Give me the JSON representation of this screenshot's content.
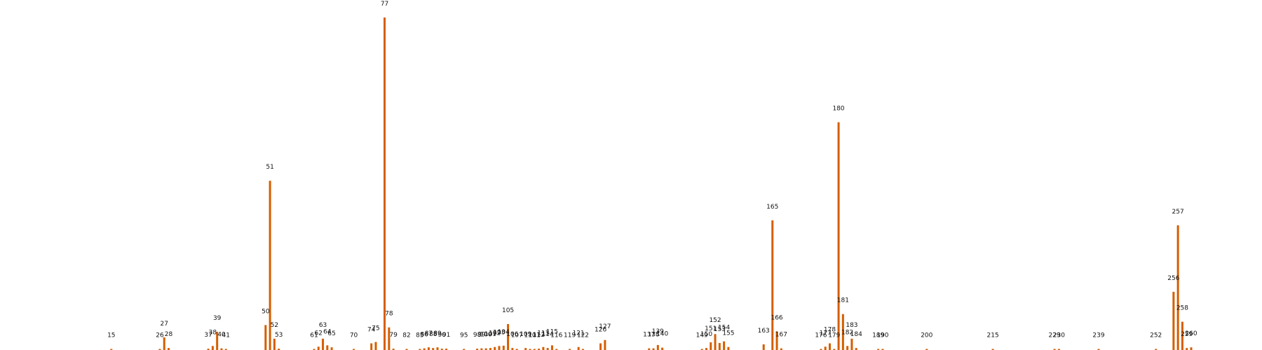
{
  "chart_data": {
    "type": "bar",
    "title": "",
    "xlabel": "",
    "ylabel": "",
    "axes_visible": false,
    "grid": false,
    "bar_color": "#d55e00",
    "ylim": [
      0,
      1000
    ],
    "labels": [
      "15",
      "26",
      "27",
      "28",
      "37",
      "38",
      "39",
      "40",
      "41",
      "50",
      "51",
      "52",
      "53",
      "61",
      "62",
      "63",
      "64",
      "65",
      "70",
      "74",
      "75",
      "77",
      "78",
      "79",
      "82",
      "85",
      "86",
      "87",
      "88",
      "89",
      "90",
      "91",
      "95",
      "98",
      "99",
      "100",
      "101",
      "102",
      "103",
      "104",
      "105",
      "106",
      "107",
      "109",
      "110",
      "111",
      "112",
      "113",
      "114",
      "115",
      "116",
      "119",
      "121",
      "122",
      "126",
      "127",
      "137",
      "138",
      "139",
      "140",
      "149",
      "150",
      "151",
      "152",
      "153",
      "154",
      "155",
      "163",
      "165",
      "166",
      "167",
      "176",
      "177",
      "178",
      "179",
      "180",
      "181",
      "182",
      "183",
      "184",
      "189",
      "190",
      "200",
      "215",
      "229",
      "230",
      "239",
      "252",
      "256",
      "257",
      "258",
      "259",
      "260"
    ],
    "values": [
      2,
      2,
      38,
      6,
      4,
      12,
      55,
      5,
      2,
      75,
      509,
      34,
      4,
      2,
      10,
      34,
      14,
      8,
      2,
      20,
      24,
      1000,
      68,
      4,
      2,
      2,
      5,
      8,
      6,
      8,
      4,
      4,
      2,
      4,
      5,
      5,
      6,
      9,
      12,
      13,
      78,
      6,
      3,
      6,
      3,
      3,
      4,
      9,
      6,
      14,
      3,
      2,
      9,
      2,
      20,
      30,
      5,
      5,
      15,
      7,
      2,
      6,
      23,
      48,
      21,
      26,
      9,
      17,
      390,
      56,
      5,
      2,
      10,
      20,
      2,
      685,
      108,
      12,
      34,
      6,
      2,
      2,
      2,
      2,
      2,
      2,
      2,
      1,
      175,
      375,
      85,
      6,
      8
    ]
  }
}
